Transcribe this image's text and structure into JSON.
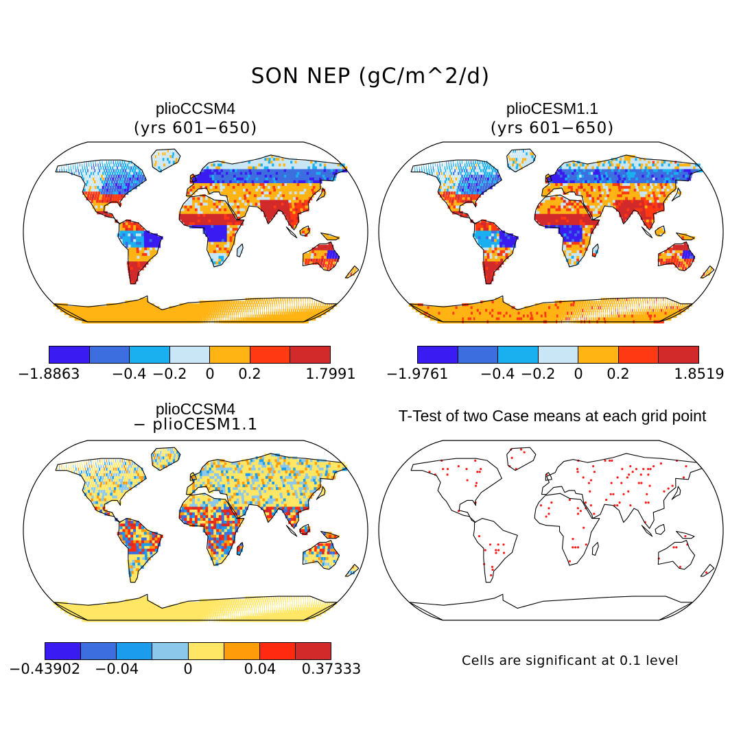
{
  "title": "SON NEP (gC/m^2/d)",
  "panels": {
    "top_left": {
      "title": "plioCCSM4",
      "subtitle": "(yrs 601−650)"
    },
    "top_right": {
      "title": "plioCESM1.1",
      "subtitle": "(yrs 601−650)"
    },
    "bottom_left": {
      "title": "plioCCSM4",
      "subtitle": "− plioCESM1.1"
    },
    "bottom_right": {
      "title": "T-Test of two Case means at each grid point"
    }
  },
  "colorbars": {
    "top_left": {
      "colors": [
        "#3a1cf2",
        "#3c6ee0",
        "#1ab0f0",
        "#c8e6f5",
        "#ffb414",
        "#ff3a12",
        "#d22a2a"
      ],
      "labels": [
        "−1.8863",
        "−0.4",
        "−0.2",
        "0",
        "0.2",
        "1.7991"
      ]
    },
    "top_right": {
      "colors": [
        "#3a1cf2",
        "#3c6ee0",
        "#1ab0f0",
        "#c8e6f5",
        "#ffb414",
        "#ff3a12",
        "#d22a2a"
      ],
      "labels": [
        "−1.9761",
        "−0.4",
        "−0.2",
        "0",
        "0.2",
        "1.8519"
      ]
    },
    "bottom_left": {
      "colors": [
        "#3a1cf2",
        "#3c6ee0",
        "#1c9cec",
        "#8cc8ea",
        "#ffe664",
        "#ff9c0a",
        "#ff2a10",
        "#d22a2a"
      ],
      "labels": [
        "−0.43902",
        "−0.04",
        "0",
        "0.04",
        "0.37333"
      ]
    }
  },
  "significance_note": "Cells are significant at 0.1 level"
}
